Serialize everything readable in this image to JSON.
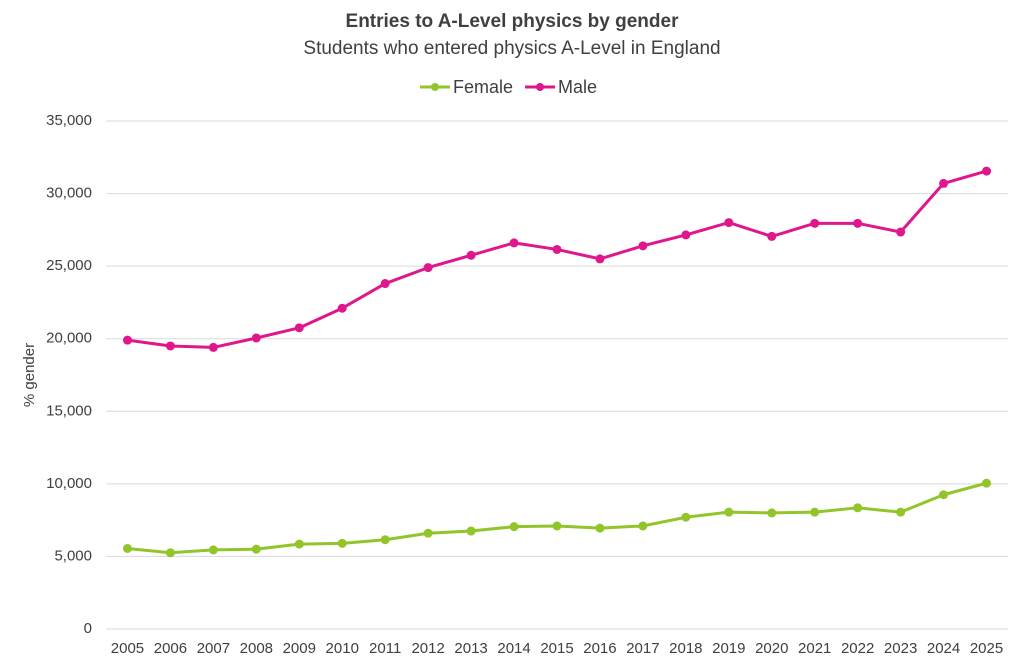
{
  "chart_data": {
    "type": "line",
    "title": "Entries to A-Level physics by gender",
    "subtitle": "Students who entered physics A-Level in England",
    "y_label": "% gender",
    "categories": [
      "2005",
      "2006",
      "2007",
      "2008",
      "2009",
      "2010",
      "2011",
      "2012",
      "2013",
      "2014",
      "2015",
      "2016",
      "2017",
      "2018",
      "2019",
      "2020",
      "2021",
      "2022",
      "2023",
      "2024",
      "2025"
    ],
    "series": [
      {
        "name": "Female",
        "color": "#92c52a",
        "values": [
          5550,
          5250,
          5450,
          5500,
          5850,
          5900,
          6150,
          6600,
          6750,
          7050,
          7100,
          6950,
          7100,
          7700,
          8050,
          8000,
          8050,
          8350,
          8050,
          9250,
          10050
        ]
      },
      {
        "name": "Male",
        "color": "#e0168c",
        "values": [
          19900,
          19500,
          19400,
          20050,
          20750,
          22100,
          23800,
          24900,
          25750,
          26600,
          26150,
          25500,
          26400,
          27150,
          28000,
          27050,
          27950,
          27950,
          27350,
          30700,
          31550
        ]
      }
    ],
    "ylim": [
      0,
      35000
    ],
    "yticks": [
      0,
      {
        "value": 5000,
        "label": "5,000"
      },
      {
        "value": 10000,
        "label": "10,000"
      },
      {
        "value": 15000,
        "label": "15,000"
      },
      {
        "value": 20000,
        "label": "20,000"
      },
      {
        "value": 25000,
        "label": "25,000"
      },
      {
        "value": 30000,
        "label": "30,000"
      },
      {
        "value": 35000,
        "label": "35,000"
      }
    ],
    "grid": true,
    "legend": "top"
  }
}
